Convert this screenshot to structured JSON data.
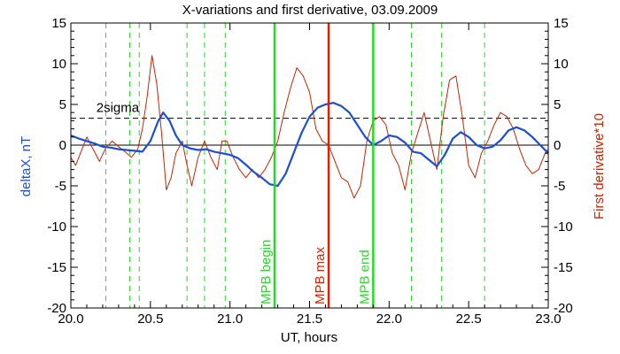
{
  "chart_data": {
    "type": "line",
    "title": "X-variations and first derivative, 03.09.2009",
    "xlabel": "UT, hours",
    "ylabel_left": "deltaX, nT",
    "ylabel_right": "First derivative*10",
    "xlim": [
      20.0,
      23.0
    ],
    "ylim": [
      -20,
      15
    ],
    "x_ticks": [
      "20.0",
      "20.5",
      "21.0",
      "21.5",
      "22.0",
      "22.5",
      "23.0"
    ],
    "y_ticks": [
      "15",
      "10",
      "5",
      "0",
      "-5",
      "-10",
      "-15",
      "-20"
    ],
    "threshold": {
      "label": "2sigma",
      "value": 3.3
    },
    "zero_line": 0,
    "dashed_verticals": [
      20.22,
      20.37,
      20.43,
      20.73,
      20.84,
      20.97,
      22.14,
      22.33,
      22.6
    ],
    "markers": [
      {
        "label": "MPB begin",
        "x": 21.28,
        "color": "#22dd22"
      },
      {
        "label": "MPB max",
        "x": 21.62,
        "color": "#dd2200"
      },
      {
        "label": "MPB end",
        "x": 21.9,
        "color": "#22dd22"
      }
    ],
    "colors": {
      "deltaX": "#1a4fd6",
      "derivative": "#cc2200",
      "axes": "#000000"
    },
    "series": [
      {
        "name": "deltaX, nT",
        "axis": "left",
        "x": [
          20.0,
          20.05,
          20.1,
          20.15,
          20.2,
          20.25,
          20.3,
          20.35,
          20.4,
          20.45,
          20.5,
          20.55,
          20.58,
          20.62,
          20.66,
          20.7,
          20.75,
          20.8,
          20.85,
          20.9,
          20.95,
          21.0,
          21.05,
          21.1,
          21.15,
          21.2,
          21.25,
          21.3,
          21.35,
          21.4,
          21.45,
          21.5,
          21.55,
          21.6,
          21.65,
          21.7,
          21.75,
          21.8,
          21.85,
          21.9,
          21.95,
          22.0,
          22.05,
          22.1,
          22.15,
          22.2,
          22.25,
          22.3,
          22.35,
          22.4,
          22.45,
          22.5,
          22.55,
          22.6,
          22.65,
          22.7,
          22.75,
          22.8,
          22.85,
          22.9,
          22.95,
          23.0
        ],
        "y": [
          1.2,
          0.8,
          0.5,
          0.2,
          -0.2,
          -0.3,
          -0.5,
          -0.6,
          -0.7,
          -0.8,
          0.5,
          3.0,
          4.0,
          3.0,
          1.2,
          0.0,
          -0.4,
          -0.6,
          -0.5,
          -0.8,
          -1.0,
          -1.2,
          -1.6,
          -2.4,
          -3.3,
          -4.0,
          -4.8,
          -5.0,
          -3.5,
          -1.0,
          1.5,
          3.5,
          4.6,
          5.0,
          5.2,
          4.8,
          4.0,
          2.5,
          1.0,
          0.0,
          0.5,
          1.2,
          1.0,
          0.3,
          -0.8,
          -1.0,
          -1.8,
          -2.6,
          -1.2,
          0.8,
          1.6,
          1.0,
          0.0,
          -0.4,
          -0.2,
          0.6,
          1.8,
          2.2,
          1.8,
          1.0,
          0.0,
          -1.0
        ]
      },
      {
        "name": "First derivative*10",
        "axis": "right",
        "x": [
          20.0,
          20.03,
          20.06,
          20.1,
          20.14,
          20.18,
          20.22,
          20.26,
          20.3,
          20.34,
          20.38,
          20.42,
          20.45,
          20.48,
          20.51,
          20.54,
          20.57,
          20.6,
          20.63,
          20.66,
          20.7,
          20.73,
          20.76,
          20.8,
          20.84,
          20.88,
          20.92,
          20.95,
          20.98,
          21.02,
          21.06,
          21.1,
          21.14,
          21.18,
          21.22,
          21.26,
          21.3,
          21.34,
          21.38,
          21.42,
          21.46,
          21.5,
          21.54,
          21.58,
          21.62,
          21.66,
          21.7,
          21.74,
          21.78,
          21.82,
          21.86,
          21.9,
          21.94,
          21.98,
          22.02,
          22.06,
          22.1,
          22.14,
          22.18,
          22.22,
          22.26,
          22.3,
          22.34,
          22.38,
          22.42,
          22.46,
          22.5,
          22.54,
          22.58,
          22.62,
          22.66,
          22.7,
          22.74,
          22.78,
          22.82,
          22.86,
          22.9,
          22.94,
          22.98,
          23.0
        ],
        "y": [
          -1.5,
          -2.5,
          -1.0,
          1.0,
          -0.5,
          -2.0,
          -0.3,
          0.5,
          -0.2,
          -0.8,
          -1.5,
          -0.5,
          2.0,
          6.0,
          11.0,
          7.5,
          1.5,
          -5.5,
          -4.0,
          -1.0,
          0.5,
          -2.5,
          -5.0,
          -1.5,
          0.5,
          -1.5,
          -3.0,
          0.5,
          0.5,
          -1.5,
          -3.0,
          -4.0,
          -3.0,
          -4.0,
          -3.0,
          -1.5,
          0.5,
          4.0,
          7.0,
          9.5,
          8.5,
          6.5,
          2.0,
          0.5,
          0.0,
          -2.0,
          -4.0,
          -4.5,
          -6.5,
          -5.0,
          0.5,
          3.0,
          3.5,
          2.5,
          -1.0,
          -2.5,
          -5.5,
          -1.0,
          1.5,
          4.0,
          0.5,
          -3.0,
          3.5,
          8.0,
          8.5,
          3.5,
          -2.5,
          -4.0,
          -1.0,
          0.5,
          2.5,
          4.0,
          3.5,
          2.0,
          -0.5,
          -2.5,
          -3.5,
          -3.0,
          -1.0,
          -0.5
        ]
      }
    ]
  }
}
